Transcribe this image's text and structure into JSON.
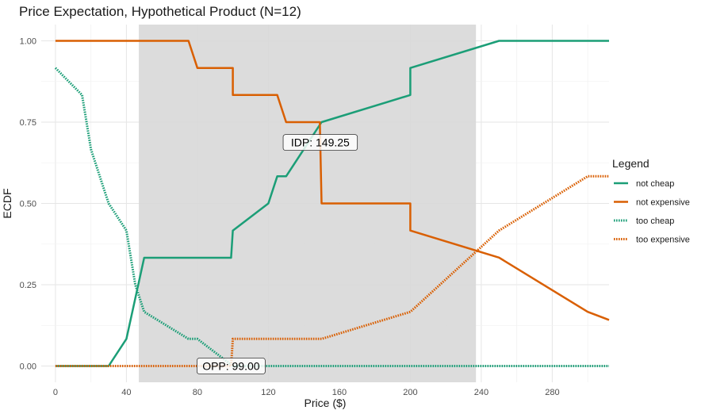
{
  "chart_data": {
    "type": "line",
    "title": "Price Expectation, Hypothetical Product (N=12)",
    "xlabel": "Price ($)",
    "ylabel": "ECDF",
    "xlim": [
      -8,
      312
    ],
    "ylim": [
      -0.05,
      1.05
    ],
    "x_ticks": [
      0,
      40,
      80,
      120,
      160,
      200,
      240,
      280
    ],
    "y_ticks": [
      0.0,
      0.25,
      0.5,
      0.75,
      1.0
    ],
    "y_tick_labels": [
      "0.00",
      "0.25",
      "0.50",
      "0.75",
      "1.00"
    ],
    "grid": true,
    "shaded_range": [
      47,
      237
    ],
    "shaded_color": "#d9d9d9",
    "legend": {
      "title": "Legend",
      "position": "right",
      "entries": [
        {
          "label": "not cheap",
          "color": "#1b9e77",
          "style": "solid"
        },
        {
          "label": "not expensive",
          "color": "#d95f02",
          "style": "solid"
        },
        {
          "label": "too cheap",
          "color": "#1b9e77",
          "style": "dotted"
        },
        {
          "label": "too expensive",
          "color": "#d95f02",
          "style": "dotted"
        }
      ]
    },
    "series": [
      {
        "name": "not cheap",
        "color": "#1b9e77",
        "style": "solid",
        "x": [
          0,
          30,
          40,
          50,
          80,
          99,
          100,
          120,
          125,
          130,
          150,
          200,
          200,
          250,
          312
        ],
        "y": [
          0,
          0,
          0.0833,
          0.333,
          0.333,
          0.333,
          0.4167,
          0.5,
          0.5833,
          0.5833,
          0.75,
          0.8333,
          0.9167,
          1.0,
          1.0
        ]
      },
      {
        "name": "not expensive",
        "color": "#d95f02",
        "style": "solid",
        "x": [
          0,
          75,
          80,
          100,
          100,
          125,
          130,
          149,
          150,
          200,
          200,
          250,
          300,
          312
        ],
        "y": [
          1.0,
          1.0,
          0.9167,
          0.9167,
          0.8333,
          0.8333,
          0.75,
          0.75,
          0.5,
          0.5,
          0.4167,
          0.3333,
          0.1667,
          0.1417
        ]
      },
      {
        "name": "too cheap",
        "color": "#1b9e77",
        "style": "dotted",
        "x": [
          0,
          15,
          20,
          25,
          30,
          40,
          45,
          50,
          75,
          80,
          100,
          101,
          312
        ],
        "y": [
          0.9167,
          0.8333,
          0.6667,
          0.5833,
          0.5,
          0.4167,
          0.25,
          0.1667,
          0.0833,
          0.0833,
          0.0,
          0.0,
          0.0
        ]
      },
      {
        "name": "too expensive",
        "color": "#d95f02",
        "style": "dotted",
        "x": [
          0,
          99,
          100,
          100,
          150,
          200,
          250,
          300,
          312
        ],
        "y": [
          0,
          0,
          0.0833,
          0.0833,
          0.0833,
          0.1667,
          0.4167,
          0.5833,
          0.5833
        ]
      }
    ],
    "annotations": [
      {
        "label": "IDP: 149.25",
        "x": 149.25,
        "y": 0.6875
      },
      {
        "label": "OPP: 99.00",
        "x": 99.0,
        "y": 0.0
      }
    ]
  }
}
